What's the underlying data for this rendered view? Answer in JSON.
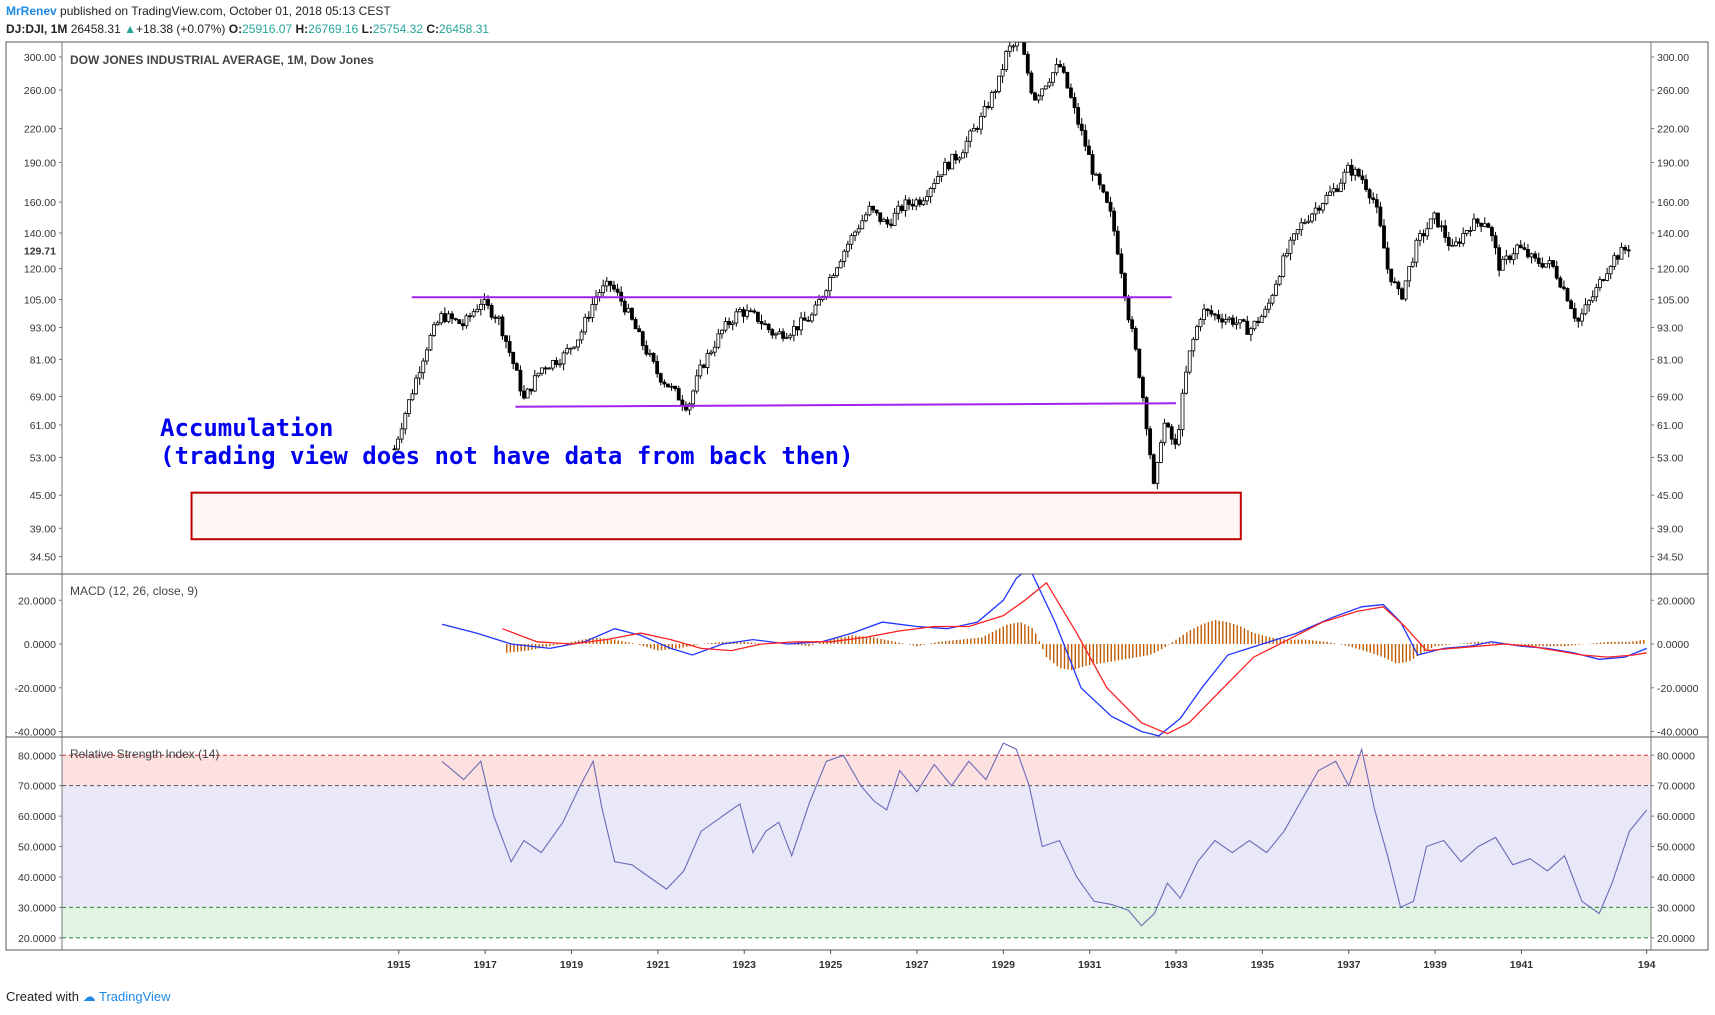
{
  "header": {
    "author": "MrRenev",
    "published": "published on TradingView.com, October 01, 2018 05:13 CEST",
    "symbol": "DJ:DJI, 1M",
    "last": "26458.31",
    "change": "+18.38 (+0.07%)",
    "open_label": "O:",
    "open": "25916.07",
    "high_label": "H:",
    "high": "26769.16",
    "low_label": "L:",
    "low": "25754.32",
    "close_label": "C:",
    "close": "26458.31"
  },
  "footer": {
    "created_with": "Created with",
    "brand": "TradingView"
  },
  "colors": {
    "candle": "#000000",
    "support_line": "#a020f0",
    "annotation": "#0000ee",
    "box": "#c00000",
    "macd": "#2233ff",
    "signal": "#ff2222",
    "hist": "#c05a00",
    "rsi": "#6b6bb8",
    "rsi_over": "#fde0e0",
    "rsi_mid": "#e8e8f8",
    "rsi_under": "#e3f3e3"
  },
  "annotation": {
    "line1": "Accumulation",
    "line2": "(trading view does not have data from back then)"
  },
  "chart_data": [
    {
      "type": "candlestick",
      "title": "DOW JONES INDUSTRIAL AVERAGE, 1M, Dow Jones",
      "scale": "log",
      "ylim": [
        32,
        320
      ],
      "xlim": [
        1907.2,
        1944.0
      ],
      "y_ticks": [
        "300.00",
        "260.00",
        "220.00",
        "190.00",
        "160.00",
        "140.00",
        "120.00",
        "105.00",
        "93.00",
        "81.00",
        "69.00",
        "61.00",
        "53.00",
        "45.00",
        "39.00",
        "34.50"
      ],
      "last_price_label": "129.71",
      "x_ticks": [
        "1915",
        "1917",
        "1919",
        "1921",
        "1923",
        "1925",
        "1927",
        "1929",
        "1931",
        "1933",
        "1935",
        "1937",
        "1939",
        "1941",
        "194"
      ],
      "path": [
        [
          1914.9,
          55
        ],
        [
          1915.3,
          70
        ],
        [
          1915.7,
          88
        ],
        [
          1916.0,
          98
        ],
        [
          1916.5,
          94
        ],
        [
          1916.9,
          104
        ],
        [
          1917.3,
          97
        ],
        [
          1917.6,
          82
        ],
        [
          1917.9,
          68
        ],
        [
          1918.3,
          78
        ],
        [
          1918.8,
          82
        ],
        [
          1919.2,
          90
        ],
        [
          1919.6,
          108
        ],
        [
          1919.9,
          112
        ],
        [
          1920.2,
          103
        ],
        [
          1920.6,
          88
        ],
        [
          1921.0,
          76
        ],
        [
          1921.4,
          70
        ],
        [
          1921.7,
          66
        ],
        [
          1922.0,
          78
        ],
        [
          1922.5,
          92
        ],
        [
          1922.9,
          100
        ],
        [
          1923.3,
          97
        ],
        [
          1923.7,
          90
        ],
        [
          1924.1,
          92
        ],
        [
          1924.6,
          98
        ],
        [
          1925.0,
          116
        ],
        [
          1925.5,
          138
        ],
        [
          1925.9,
          155
        ],
        [
          1926.3,
          145
        ],
        [
          1926.7,
          158
        ],
        [
          1927.1,
          162
        ],
        [
          1927.6,
          185
        ],
        [
          1928.0,
          198
        ],
        [
          1928.5,
          230
        ],
        [
          1928.9,
          270
        ],
        [
          1929.1,
          310
        ],
        [
          1929.4,
          318
        ],
        [
          1929.7,
          250
        ],
        [
          1930.0,
          270
        ],
        [
          1930.3,
          290
        ],
        [
          1930.7,
          230
        ],
        [
          1931.1,
          180
        ],
        [
          1931.5,
          150
        ],
        [
          1931.9,
          98
        ],
        [
          1932.2,
          72
        ],
        [
          1932.5,
          45
        ],
        [
          1932.7,
          62
        ],
        [
          1933.0,
          55
        ],
        [
          1933.3,
          82
        ],
        [
          1933.6,
          100
        ],
        [
          1933.9,
          98
        ],
        [
          1934.3,
          96
        ],
        [
          1934.7,
          92
        ],
        [
          1935.1,
          100
        ],
        [
          1935.5,
          125
        ],
        [
          1935.9,
          145
        ],
        [
          1936.3,
          158
        ],
        [
          1936.7,
          170
        ],
        [
          1937.0,
          185
        ],
        [
          1937.3,
          178
        ],
        [
          1937.6,
          160
        ],
        [
          1937.9,
          120
        ],
        [
          1938.2,
          105
        ],
        [
          1938.6,
          135
        ],
        [
          1939.0,
          150
        ],
        [
          1939.4,
          130
        ],
        [
          1939.8,
          145
        ],
        [
          1940.2,
          148
        ],
        [
          1940.5,
          120
        ],
        [
          1940.9,
          132
        ],
        [
          1941.3,
          124
        ],
        [
          1941.7,
          122
        ],
        [
          1942.1,
          105
        ],
        [
          1942.3,
          95
        ],
        [
          1942.7,
          108
        ],
        [
          1943.1,
          125
        ],
        [
          1943.5,
          132
        ]
      ],
      "lines": [
        {
          "x": [
            1915.3,
            1932.9
          ],
          "y": [
            106,
            106
          ]
        },
        {
          "x": [
            1917.7,
            1933.0
          ],
          "y": [
            66,
            67
          ]
        }
      ],
      "box": {
        "x": [
          1910.2,
          1934.5
        ],
        "y": [
          37.2,
          45.5
        ]
      }
    },
    {
      "type": "line",
      "title": "MACD (12, 26, close, 9)",
      "ylim": [
        -42.5,
        32
      ],
      "y_ticks": [
        "20.0000",
        "0.0000",
        "-20.0000",
        "-40.0000"
      ],
      "series": [
        {
          "role": "macd",
          "x": [
            1916.0,
            1916.8,
            1917.6,
            1918.5,
            1919.3,
            1920.0,
            1920.6,
            1921.3,
            1921.8,
            1922.5,
            1923.2,
            1924.0,
            1924.8,
            1925.5,
            1926.2,
            1927.0,
            1927.7,
            1928.4,
            1929.0,
            1929.3,
            1929.6,
            1930.2,
            1930.8,
            1931.5,
            1932.2,
            1932.6,
            1933.1,
            1933.6,
            1934.2,
            1935.0,
            1935.8,
            1936.6,
            1937.3,
            1937.8,
            1938.2,
            1938.6,
            1939.2,
            1939.8,
            1940.3,
            1941.0,
            1941.6,
            1942.2,
            1942.8,
            1943.4,
            1943.9
          ],
          "y": [
            9,
            5,
            0,
            -2,
            1,
            7,
            4,
            -2,
            -5,
            0,
            2,
            0,
            1,
            5,
            10,
            8,
            7,
            10,
            20,
            30,
            35,
            10,
            -20,
            -33,
            -40,
            -42,
            -34,
            -20,
            -5,
            0,
            5,
            12,
            17,
            18,
            10,
            -5,
            -2,
            -1,
            1,
            -1,
            -2,
            -4,
            -7,
            -6,
            -2
          ]
        },
        {
          "role": "signal",
          "x": [
            1917.4,
            1918.2,
            1919.0,
            1919.8,
            1920.6,
            1921.3,
            1922.0,
            1922.7,
            1923.4,
            1924.2,
            1925.0,
            1925.8,
            1926.6,
            1927.4,
            1928.2,
            1929.0,
            1929.5,
            1930.0,
            1930.7,
            1931.4,
            1932.2,
            1932.8,
            1933.3,
            1934.0,
            1934.8,
            1935.6,
            1936.4,
            1937.2,
            1937.8,
            1938.3,
            1938.8,
            1939.4,
            1940.0,
            1940.6,
            1941.2,
            1941.8,
            1942.4,
            1943.0,
            1943.6,
            1943.9
          ],
          "y": [
            7,
            1,
            0,
            2,
            5,
            2,
            -2,
            -3,
            0,
            1,
            1,
            3,
            6,
            8,
            8,
            13,
            20,
            28,
            5,
            -20,
            -36,
            -41,
            -36,
            -22,
            -6,
            2,
            10,
            15,
            17,
            8,
            -3,
            -2,
            -1,
            0,
            -1,
            -3,
            -5,
            -6,
            -5,
            -4
          ]
        }
      ],
      "histogram": {
        "x": [
          1917.5,
          1918.0,
          1918.5,
          1919.0,
          1919.5,
          1920.0,
          1920.5,
          1921.0,
          1921.5,
          1922.0,
          1922.5,
          1923.0,
          1923.5,
          1924.0,
          1924.5,
          1925.0,
          1925.5,
          1926.0,
          1926.5,
          1927.0,
          1927.5,
          1928.0,
          1928.5,
          1928.8,
          1929.1,
          1929.4,
          1929.7,
          1930.0,
          1930.3,
          1930.6,
          1930.9,
          1931.2,
          1931.5,
          1931.8,
          1932.1,
          1932.4,
          1932.7,
          1933.0,
          1933.3,
          1933.6,
          1933.9,
          1934.2,
          1934.5,
          1934.8,
          1935.2,
          1935.6,
          1936.0,
          1936.5,
          1937.0,
          1937.5,
          1937.8,
          1938.1,
          1938.4,
          1938.7,
          1939.0,
          1939.5,
          1940.0,
          1940.5,
          1941.0,
          1941.5,
          1942.0,
          1942.5,
          1943.0,
          1943.5,
          1943.9
        ],
        "y": [
          -4,
          -3,
          -1,
          1,
          3,
          2,
          0,
          -3,
          -2,
          0,
          1,
          1,
          0,
          0,
          -1,
          2,
          4,
          3,
          1,
          -1,
          1,
          2,
          3,
          6,
          9,
          10,
          7,
          -6,
          -11,
          -12,
          -10,
          -9,
          -8,
          -7,
          -6,
          -5,
          -2,
          2,
          6,
          9,
          11,
          10,
          8,
          5,
          3,
          2,
          2,
          1,
          -1,
          -4,
          -6,
          -9,
          -8,
          -4,
          -1,
          0,
          1,
          0,
          -1,
          -1,
          -1,
          0,
          1,
          1,
          2
        ]
      }
    },
    {
      "type": "line",
      "title": "Relative Strength Index (14)",
      "ylim": [
        16,
        86
      ],
      "y_ticks": [
        "80.0000",
        "70.0000",
        "60.0000",
        "50.0000",
        "40.0000",
        "30.0000",
        "20.0000"
      ],
      "bands": {
        "upper": 80,
        "mid_upper": 70,
        "mid_lower": 30,
        "lower": 20
      },
      "series": [
        {
          "role": "rsi",
          "x": [
            1916.0,
            1916.5,
            1916.9,
            1917.2,
            1917.6,
            1917.9,
            1918.3,
            1918.8,
            1919.2,
            1919.5,
            1919.7,
            1920.0,
            1920.4,
            1920.8,
            1921.2,
            1921.6,
            1922.0,
            1922.5,
            1922.9,
            1923.2,
            1923.5,
            1923.8,
            1924.1,
            1924.5,
            1924.9,
            1925.3,
            1925.7,
            1926.0,
            1926.3,
            1926.6,
            1927.0,
            1927.4,
            1927.8,
            1928.2,
            1928.6,
            1929.0,
            1929.3,
            1929.6,
            1929.9,
            1930.3,
            1930.7,
            1931.1,
            1931.5,
            1931.9,
            1932.2,
            1932.5,
            1932.8,
            1933.1,
            1933.5,
            1933.9,
            1934.3,
            1934.7,
            1935.1,
            1935.5,
            1935.9,
            1936.3,
            1936.7,
            1937.0,
            1937.3,
            1937.6,
            1937.9,
            1938.2,
            1938.5,
            1938.8,
            1939.2,
            1939.6,
            1940.0,
            1940.4,
            1940.8,
            1941.2,
            1941.6,
            1942.0,
            1942.4,
            1942.8,
            1943.1,
            1943.5,
            1943.9
          ],
          "y": [
            78,
            72,
            78,
            60,
            45,
            52,
            48,
            58,
            70,
            78,
            63,
            45,
            44,
            40,
            36,
            42,
            55,
            60,
            64,
            48,
            55,
            58,
            47,
            64,
            78,
            80,
            70,
            65,
            62,
            75,
            68,
            77,
            70,
            78,
            72,
            84,
            82,
            70,
            50,
            52,
            40,
            32,
            31,
            29,
            24,
            28,
            38,
            33,
            45,
            52,
            48,
            52,
            48,
            55,
            65,
            75,
            78,
            70,
            82,
            62,
            47,
            30,
            32,
            50,
            52,
            45,
            50,
            53,
            44,
            46,
            42,
            47,
            32,
            28,
            38,
            55,
            62
          ]
        }
      ]
    }
  ]
}
